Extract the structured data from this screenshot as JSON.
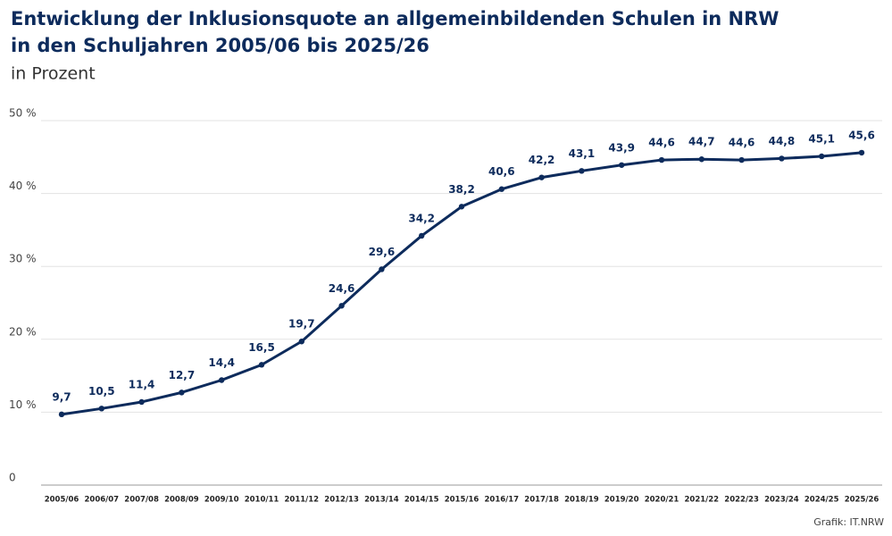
{
  "chart_data": {
    "type": "line",
    "title": [
      "Entwicklung der Inklusionsquote an allgemeinbildenden Schulen in NRW",
      "in den Schuljahren 2005/06 bis 2025/26"
    ],
    "subtitle": "in Prozent",
    "source": "Grafik: IT.NRW",
    "categories": [
      "2005/06",
      "2006/07",
      "2007/08",
      "2008/09",
      "2009/10",
      "2010/11",
      "2011/12",
      "2012/13",
      "2013/14",
      "2014/15",
      "2015/16",
      "2016/17",
      "2017/18",
      "2018/19",
      "2019/20",
      "2020/21",
      "2021/22",
      "2022/23",
      "2023/24",
      "2024/25",
      "2025/26"
    ],
    "values": [
      9.7,
      10.5,
      11.4,
      12.7,
      14.4,
      16.5,
      19.7,
      24.6,
      29.6,
      34.2,
      38.2,
      40.6,
      42.2,
      43.1,
      43.9,
      44.6,
      44.7,
      44.6,
      44.8,
      45.1,
      45.6
    ],
    "value_labels": [
      "9,7",
      "10,5",
      "11,4",
      "12,7",
      "14,4",
      "16,5",
      "19,7",
      "24,6",
      "29,6",
      "34,2",
      "38,2",
      "40,6",
      "42,2",
      "43,1",
      "43,9",
      "44,6",
      "44,7",
      "44,6",
      "44,8",
      "45,1",
      "45,6"
    ],
    "color": "#0d2b5c",
    "ylim": [
      0,
      50
    ],
    "yticks": [
      0,
      {
        "value": 10,
        "label": "10 %"
      },
      {
        "value": 20,
        "label": "20 %"
      },
      {
        "value": 30,
        "label": "30 %"
      },
      {
        "value": 40,
        "label": "40 %"
      },
      {
        "value": 50,
        "label": "50 %"
      }
    ],
    "grid": true
  }
}
